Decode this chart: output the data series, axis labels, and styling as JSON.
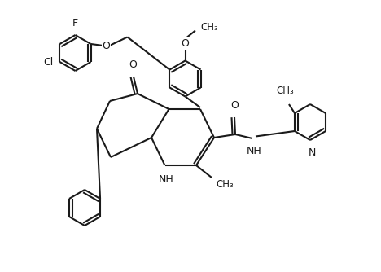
{
  "bg_color": "#ffffff",
  "line_color": "#1a1a1a",
  "lw": 1.5,
  "fs": 9.0,
  "fig_w": 4.68,
  "fig_h": 3.34,
  "dpi": 100,
  "xlim": [
    0,
    9.36
  ],
  "ylim": [
    0,
    6.68
  ]
}
